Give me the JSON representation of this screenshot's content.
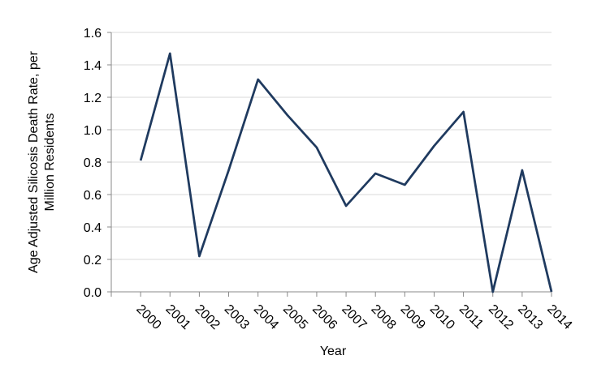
{
  "chart_data": {
    "type": "line",
    "xlabel": "Year",
    "ylabel": [
      "Age Adjusted Silicosis Death Rate, per",
      "Million Residents"
    ],
    "categories": [
      "2000",
      "2001",
      "2002",
      "2003",
      "2004",
      "2005",
      "2006",
      "2007",
      "2008",
      "2009",
      "2010",
      "2011",
      "2012",
      "2013",
      "2014"
    ],
    "values": [
      0.81,
      1.47,
      0.22,
      0.75,
      1.31,
      1.09,
      0.89,
      0.53,
      0.73,
      0.66,
      0.9,
      1.11,
      0.0,
      0.75,
      0.0
    ],
    "color": "#1f3a5f",
    "ylim": [
      0,
      1.6
    ],
    "yticks": [
      {
        "value": 0,
        "label": "0.0"
      },
      0.2,
      0.4,
      0.6,
      0.8,
      {
        "value": 1,
        "label": "1.0"
      },
      1.2,
      1.4,
      1.6
    ],
    "grid": true
  }
}
